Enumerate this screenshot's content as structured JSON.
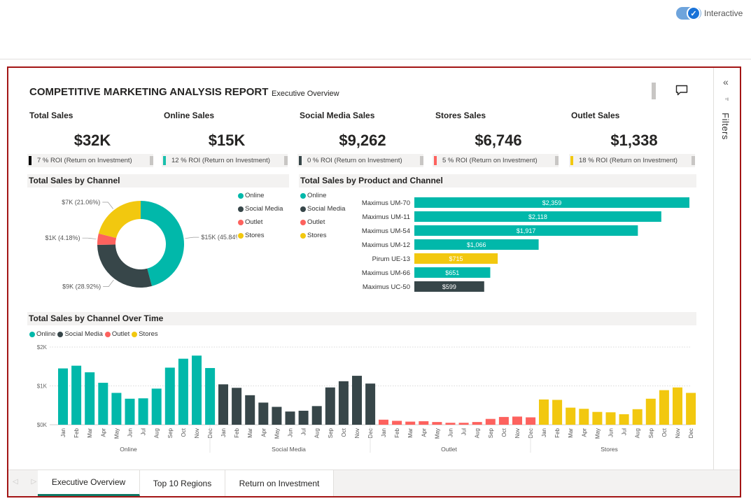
{
  "toolbar": {
    "interactive_label": "Interactive",
    "interactive_on": true
  },
  "report": {
    "title": "COMPETITIVE MARKETING ANALYSIS REPORT",
    "subtitle": "Executive Overview"
  },
  "kpis": [
    {
      "title": "Total Sales",
      "value": "$32K",
      "roi": "7 % ROI (Return on Investment)",
      "color": "#000000"
    },
    {
      "title": "Online Sales",
      "value": "$15K",
      "roi": "12 % ROI (Return on Investment)",
      "color": "#1ABFAC"
    },
    {
      "title": "Social Media Sales",
      "value": "$9,262",
      "roi": "0 % ROI (Return on Investment)",
      "color": "#374649"
    },
    {
      "title": "Stores Sales",
      "value": "$6,746",
      "roi": "5 % ROI (Return on Investment)",
      "color": "#FD625E"
    },
    {
      "title": "Outlet Sales",
      "value": "$1,338",
      "roi": "18 % ROI (Return on Investment)",
      "color": "#F2C80F"
    }
  ],
  "colors": {
    "Online": "#01B8AA",
    "Social Media": "#374649",
    "Outlet": "#FD625E",
    "Stores": "#F2C80F"
  },
  "legend": [
    "Online",
    "Social Media",
    "Outlet",
    "Stores"
  ],
  "filters": {
    "label": "Filters"
  },
  "tabs": [
    {
      "label": "Executive Overview",
      "active": true
    },
    {
      "label": "Top 10 Regions",
      "active": false
    },
    {
      "label": "Return on Investment",
      "active": false
    }
  ],
  "chart_data": [
    {
      "type": "pie",
      "title": "Total Sales by Channel",
      "donut": true,
      "slices": [
        {
          "name": "Online",
          "value": 45.84,
          "label": "$15K (45.84%)"
        },
        {
          "name": "Social Media",
          "value": 28.92,
          "label": "$9K (28.92%)"
        },
        {
          "name": "Outlet",
          "value": 4.18,
          "label": "$1K (4.18%)"
        },
        {
          "name": "Stores",
          "value": 21.06,
          "label": "$7K (21.06%)"
        }
      ]
    },
    {
      "type": "bar",
      "orientation": "horizontal",
      "title": "Total Sales by Product and Channel",
      "categories": [
        "Maximus UM-70",
        "Maximus UM-11",
        "Maximus UM-54",
        "Maximus UM-12",
        "Pirum UE-13",
        "Maximus UM-66",
        "Maximus UC-50"
      ],
      "values": [
        2359,
        2118,
        1917,
        1066,
        715,
        651,
        599
      ],
      "labels": [
        "$2,359",
        "$2,118",
        "$1,917",
        "$1,066",
        "$715",
        "$651",
        "$599"
      ],
      "channels": [
        "Online",
        "Online",
        "Online",
        "Online",
        "Stores",
        "Online",
        "Social Media"
      ],
      "xlim": [
        0,
        2359
      ]
    },
    {
      "type": "bar",
      "title": "Total Sales by Channel Over Time",
      "months": [
        "Jan",
        "Feb",
        "Mar",
        "Apr",
        "May",
        "Jun",
        "Jul",
        "Aug",
        "Sep",
        "Oct",
        "Nov",
        "Dec"
      ],
      "yticks": [
        "$2K",
        "$1K",
        "$0K"
      ],
      "ylim": [
        0,
        2000
      ],
      "series": [
        {
          "name": "Online",
          "values": [
            1450,
            1520,
            1350,
            1080,
            820,
            670,
            680,
            930,
            1470,
            1700,
            1780,
            1460
          ]
        },
        {
          "name": "Social Media",
          "values": [
            1040,
            950,
            760,
            570,
            460,
            340,
            360,
            480,
            960,
            1120,
            1260,
            1060
          ]
        },
        {
          "name": "Outlet",
          "values": [
            130,
            100,
            80,
            90,
            70,
            50,
            50,
            70,
            150,
            200,
            210,
            190
          ]
        },
        {
          "name": "Stores",
          "values": [
            650,
            640,
            440,
            410,
            330,
            320,
            270,
            400,
            670,
            890,
            960,
            820
          ]
        }
      ]
    }
  ]
}
